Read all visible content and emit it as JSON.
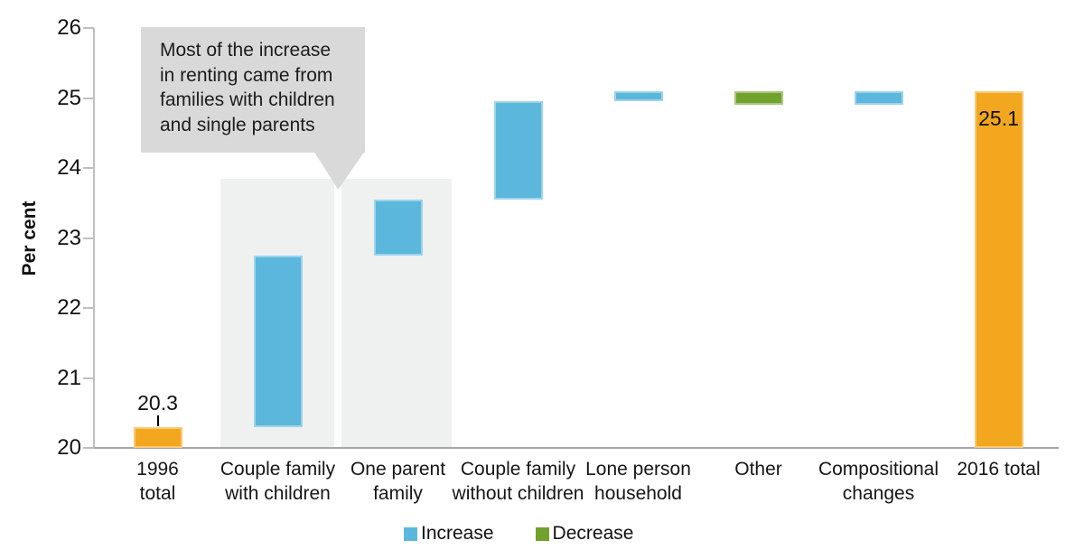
{
  "chart_data": {
    "type": "bar",
    "subtype": "waterfall",
    "title": "",
    "ylabel": "Per cent",
    "y_axis": {
      "min": 20,
      "max": 26,
      "tick_step": 1,
      "ticks": [
        "20",
        "21",
        "22",
        "23",
        "24",
        "25",
        "26"
      ]
    },
    "grid": "off",
    "categories": [
      "1996\ntotal",
      "Couple family\nwith children",
      "One parent\nfamily",
      "Couple family\nwithout children",
      "Lone person\nhousehold",
      "Other",
      "Compositional\nchanges",
      "2016 total"
    ],
    "segments": [
      {
        "label": "1996 total",
        "kind": "total",
        "from": 20.0,
        "to": 20.3,
        "data_label": "20.3",
        "data_label_position": "above"
      },
      {
        "label": "Couple family with children",
        "kind": "increase",
        "from": 20.3,
        "to": 22.75
      },
      {
        "label": "One parent family",
        "kind": "increase",
        "from": 22.75,
        "to": 23.55
      },
      {
        "label": "Couple family without children",
        "kind": "increase",
        "from": 23.55,
        "to": 24.95
      },
      {
        "label": "Lone person household",
        "kind": "increase",
        "from": 24.95,
        "to": 25.1
      },
      {
        "label": "Other",
        "kind": "decrease",
        "from": 25.1,
        "to": 24.9
      },
      {
        "label": "Compositional changes",
        "kind": "increase",
        "from": 24.9,
        "to": 25.1
      },
      {
        "label": "2016 total",
        "kind": "total",
        "from": 20.0,
        "to": 25.1,
        "data_label": "25.1",
        "data_label_position": "inside-top"
      }
    ],
    "colors": {
      "increase": "#5bb7dc",
      "decrease": "#72a22e",
      "total": "#f2a71e",
      "highlight_region": "#eff1f0",
      "callout_bg": "#d9d9d9",
      "axis_line": "#bfbfbf"
    },
    "highlight_region": {
      "start_category_index": 1,
      "end_category_index": 2,
      "top_value": 23.85
    },
    "annotation": {
      "text": "Most of the increase\nin renting came from\nfamilies with children\nand single parents"
    },
    "legend": [
      {
        "label": "Increase",
        "color_key": "increase"
      },
      {
        "label": "Decrease",
        "color_key": "decrease"
      }
    ]
  }
}
